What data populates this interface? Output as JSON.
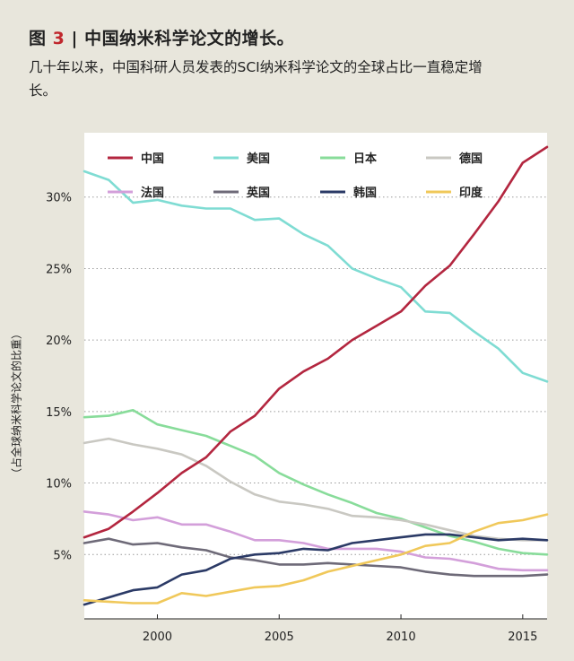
{
  "figure": {
    "label": "图",
    "number": "3",
    "separator": "|",
    "title": "中国纳米科学论文的增长。",
    "subtitle": "几十年以来，中国科研人员发表的SCI纳米科学论文的全球占比一直稳定增长。"
  },
  "chart_data": {
    "type": "line",
    "title": "",
    "xlabel": "",
    "ylabel": "（占全球纳米科学论文的比重）",
    "xlim": [
      1997,
      2016
    ],
    "ylim": [
      0.5,
      34.5
    ],
    "x_ticks": [
      2000,
      2005,
      2010,
      2015
    ],
    "x_tick_labels": [
      "2000",
      "2005",
      "2010",
      "2015"
    ],
    "y_ticks": [
      5,
      10,
      15,
      20,
      25,
      30
    ],
    "y_tick_labels": [
      "5%",
      "10%",
      "15%",
      "20%",
      "25%",
      "30%"
    ],
    "grid": "horizontal dotted",
    "legend_placement": "top, two rows inside plot",
    "x": [
      1997,
      1998,
      1999,
      2000,
      2001,
      2002,
      2003,
      2004,
      2005,
      2006,
      2007,
      2008,
      2009,
      2010,
      2011,
      2012,
      2013,
      2014,
      2015,
      2016
    ],
    "series": [
      {
        "name": "中国",
        "color": "#b3263f",
        "values": [
          6.2,
          6.8,
          8.0,
          9.3,
          10.7,
          11.8,
          13.6,
          14.7,
          16.6,
          17.8,
          18.7,
          20.0,
          21.0,
          22.0,
          23.8,
          25.2,
          27.4,
          29.7,
          32.4,
          33.5
        ]
      },
      {
        "name": "美国",
        "color": "#7fdcd3",
        "values": [
          31.8,
          31.2,
          29.6,
          29.8,
          29.4,
          29.2,
          29.2,
          28.4,
          28.5,
          27.4,
          26.6,
          25.0,
          24.3,
          23.7,
          22.0,
          21.9,
          20.6,
          19.4,
          17.7,
          17.1
        ]
      },
      {
        "name": "日本",
        "color": "#88dc9a",
        "values": [
          14.6,
          14.7,
          15.1,
          14.1,
          13.7,
          13.3,
          12.6,
          11.9,
          10.7,
          9.9,
          9.2,
          8.6,
          7.9,
          7.5,
          6.9,
          6.3,
          5.9,
          5.4,
          5.1,
          5.0
        ]
      },
      {
        "name": "德国",
        "color": "#c9c8c2",
        "values": [
          12.8,
          13.1,
          12.7,
          12.4,
          12.0,
          11.2,
          10.1,
          9.2,
          8.7,
          8.5,
          8.2,
          7.7,
          7.6,
          7.4,
          7.1,
          6.7,
          6.3,
          6.1,
          6.0,
          6.0
        ]
      },
      {
        "name": "法国",
        "color": "#d39fda",
        "values": [
          8.0,
          7.8,
          7.4,
          7.6,
          7.1,
          7.1,
          6.6,
          6.0,
          6.0,
          5.8,
          5.4,
          5.4,
          5.4,
          5.2,
          4.8,
          4.7,
          4.4,
          4.0,
          3.9,
          3.9
        ]
      },
      {
        "name": "英国",
        "color": "#6e6a78",
        "values": [
          5.8,
          6.1,
          5.7,
          5.8,
          5.5,
          5.3,
          4.8,
          4.6,
          4.3,
          4.3,
          4.4,
          4.3,
          4.2,
          4.1,
          3.8,
          3.6,
          3.5,
          3.5,
          3.5,
          3.6
        ]
      },
      {
        "name": "韩国",
        "color": "#2b3a66",
        "values": [
          1.5,
          2.0,
          2.5,
          2.7,
          3.6,
          3.9,
          4.7,
          5.0,
          5.1,
          5.4,
          5.3,
          5.8,
          6.0,
          6.2,
          6.4,
          6.4,
          6.2,
          6.0,
          6.1,
          6.0
        ]
      },
      {
        "name": "印度",
        "color": "#f0c85a",
        "values": [
          1.8,
          1.7,
          1.6,
          1.6,
          2.3,
          2.1,
          2.4,
          2.7,
          2.8,
          3.2,
          3.8,
          4.2,
          4.6,
          5.0,
          5.6,
          5.8,
          6.6,
          7.2,
          7.4,
          7.8
        ]
      }
    ]
  }
}
